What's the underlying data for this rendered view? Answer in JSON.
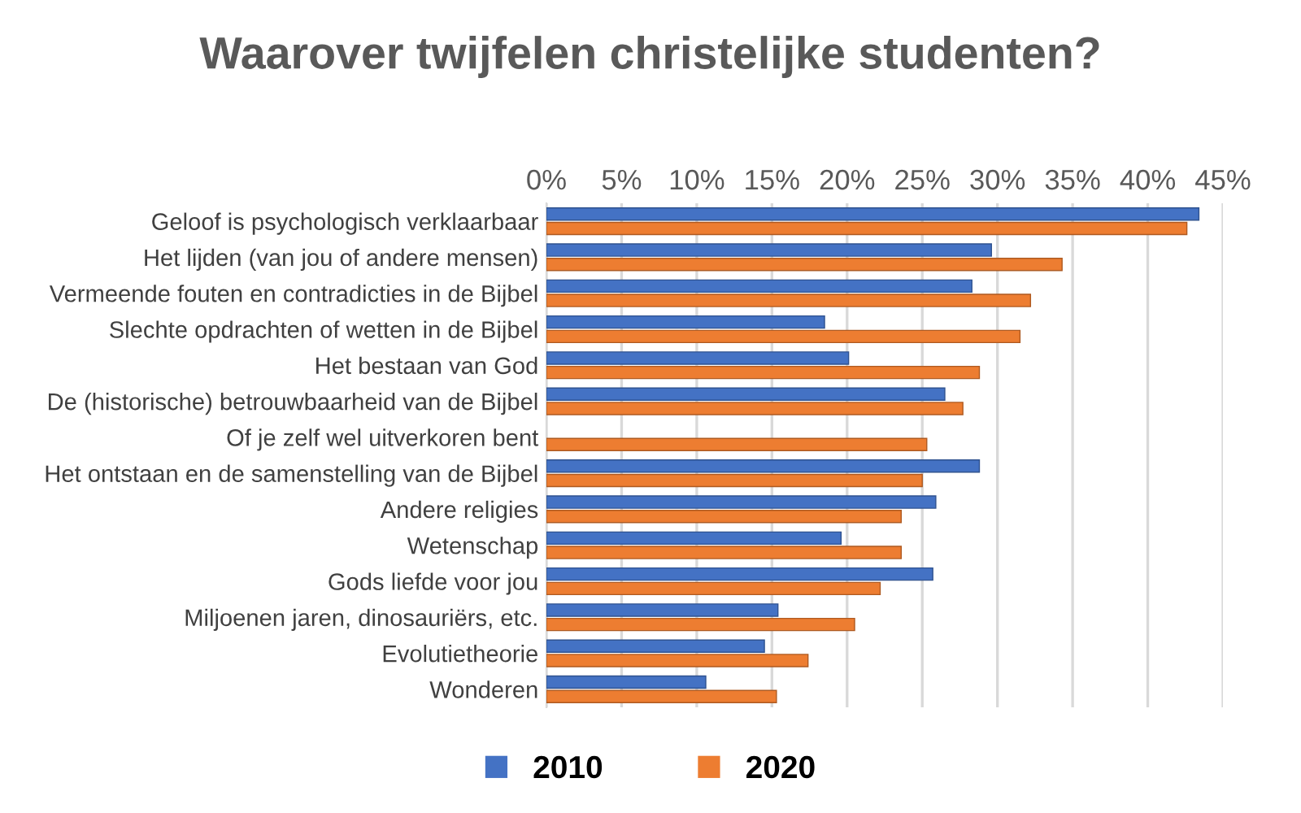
{
  "chart_data": {
    "type": "bar",
    "orientation": "horizontal",
    "title": "Waarover twijfelen christelijke studenten?",
    "categories": [
      "Geloof is psychologisch verklaarbaar",
      "Het lijden (van jou of andere mensen)",
      "Vermeende fouten en contradicties in de Bijbel",
      "Slechte opdrachten of wetten in de Bijbel",
      "Het bestaan van God",
      "De (historische) betrouwbaarheid van de Bijbel",
      "Of je zelf wel uitverkoren bent",
      "Het ontstaan en de samenstelling van de Bijbel",
      "Andere religies",
      "Wetenschap",
      "Gods liefde voor jou",
      "Miljoenen jaren, dinosauriërs, etc.",
      "Evolutietheorie",
      "Wonderen"
    ],
    "series": [
      {
        "name": "2010",
        "color": "#4472c4",
        "values": [
          43.4,
          29.6,
          28.3,
          18.5,
          20.1,
          26.5,
          null,
          28.8,
          25.9,
          19.6,
          25.7,
          15.4,
          14.5,
          10.6
        ]
      },
      {
        "name": "2020",
        "color": "#ed7d31",
        "values": [
          42.6,
          34.3,
          32.2,
          31.5,
          28.8,
          27.7,
          25.3,
          25.0,
          23.6,
          23.6,
          22.2,
          20.5,
          17.4,
          15.3
        ]
      }
    ],
    "xlim": [
      0,
      45
    ],
    "xticks": [
      {
        "value": 0,
        "label": "0%"
      },
      {
        "value": 5,
        "label": "5%"
      },
      {
        "value": 10,
        "label": "10%"
      },
      {
        "value": 15,
        "label": "15%"
      },
      {
        "value": 20,
        "label": "20%"
      },
      {
        "value": 25,
        "label": "25%"
      },
      {
        "value": 30,
        "label": "30%"
      },
      {
        "value": 35,
        "label": "35%"
      },
      {
        "value": 40,
        "label": "40%"
      },
      {
        "value": 45,
        "label": "45%"
      }
    ],
    "grid": "x",
    "legend": "bottom"
  }
}
